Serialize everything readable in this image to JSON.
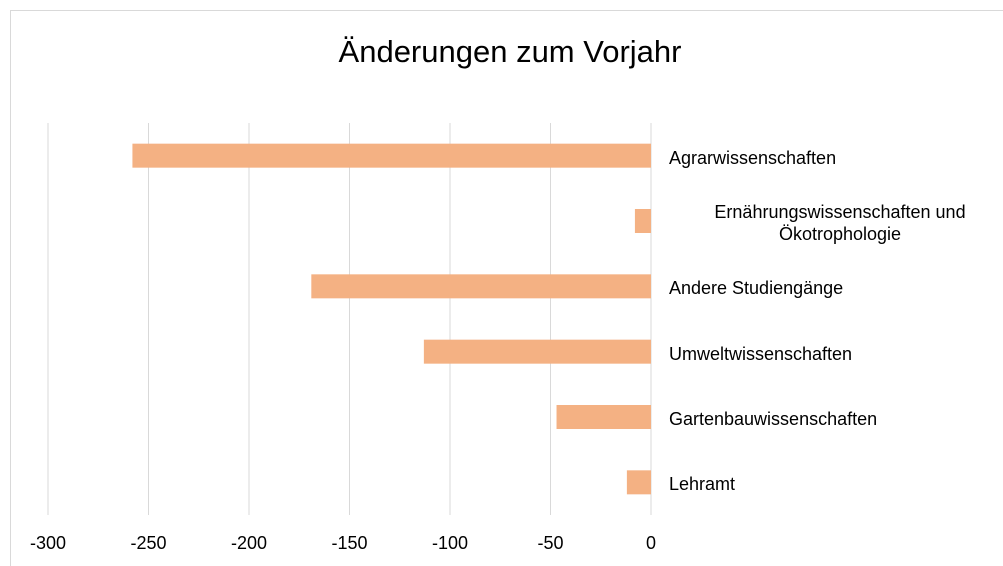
{
  "chart_data": {
    "type": "barh",
    "title": "Änderungen zum Vorjahr",
    "categories": [
      "Agrarwissenschaften",
      "Ernährungswissenschaften und Ökotrophologie",
      "Andere Studiengänge",
      "Umweltwissenschaften",
      "Gartenbauwissenschaften",
      "Lehramt"
    ],
    "values": [
      -258,
      -8,
      -169,
      -113,
      -47,
      -12
    ],
    "color": "#f4b183",
    "xlim": [
      -300,
      0
    ],
    "xticks": [
      -300,
      -250,
      -200,
      -150,
      -100,
      -50,
      0
    ],
    "grid": true
  }
}
